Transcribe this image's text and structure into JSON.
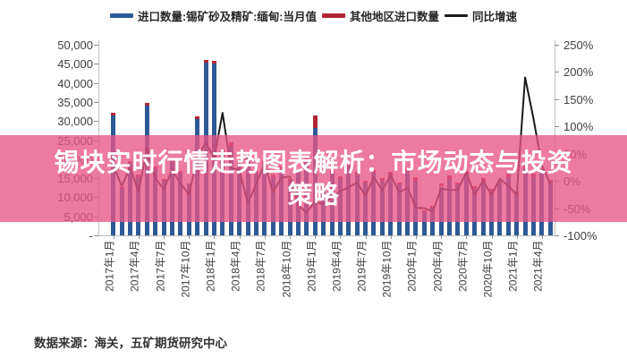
{
  "legend": {
    "items": [
      {
        "label": "进口数量:锡矿砂及精矿:缅甸:当月值",
        "color": "#2d5a96",
        "type": "bar"
      },
      {
        "label": "其他地区进口数量",
        "color": "#b22433",
        "type": "bar"
      },
      {
        "label": "同比增速",
        "color": "#1a1a1a",
        "type": "line"
      }
    ]
  },
  "banner": {
    "title_line1": "锡块实时行情走势图表解析：市场动态与投资",
    "title_line2": "策略",
    "background_color": "#e85485",
    "overlay_opacity": 0.78,
    "text_color": "#ffffff"
  },
  "footer": {
    "source_text": "数据来源：海关，五矿期货研究中心"
  },
  "chart_data": {
    "type": "bar",
    "title": "",
    "xlabel": "",
    "ylabel_left": "",
    "ylabel_right": "",
    "months_total": 53,
    "x_start": "2017年1月",
    "x_tick_every": 3,
    "x_tick_labels": [
      "2017年1月",
      "2017年4月",
      "2017年7月",
      "2017年10月",
      "2018年1月",
      "2018年4月",
      "2018年7月",
      "2018年10月",
      "2019年1月",
      "2019年4月",
      "2019年7月",
      "2019年10月",
      "2020年1月",
      "2020年4月",
      "2020年7月",
      "2020年10月",
      "2021年1月",
      "2021年4月"
    ],
    "left_axis": {
      "ticks": [
        "50,000",
        "45,000",
        "40,000",
        "35,000",
        "30,000",
        "25,000",
        "20,000",
        "15,000",
        "10,000",
        "5,000",
        "-"
      ],
      "min": 0,
      "max": 50000
    },
    "right_axis": {
      "ticks": [
        "250%",
        "200%",
        "150%",
        "100%",
        "50%",
        "0%",
        "-50%",
        "-100%"
      ],
      "min": -100,
      "max": 250
    },
    "grid": false,
    "legend_position": "top",
    "series": [
      {
        "name": "进口数量:锡矿砂及精矿:缅甸:当月值",
        "type": "bar",
        "stack": "imports",
        "axis": "left",
        "color": "#2d5a96",
        "values": [
          30800,
          12000,
          18500,
          15000,
          33300,
          17000,
          14000,
          19000,
          16000,
          13000,
          29800,
          44200,
          44000,
          21000,
          23000,
          18000,
          20000,
          16000,
          18500,
          15000,
          17000,
          14000,
          16500,
          19000,
          27500,
          12000,
          16000,
          14500,
          17500,
          15500,
          13500,
          16000,
          14000,
          15500,
          13000,
          16500,
          14000,
          6000,
          7000,
          12500,
          14500,
          13000,
          15500,
          12000,
          14000,
          11500,
          13500,
          15000,
          10500,
          17400,
          15000,
          16000,
          13500
        ]
      },
      {
        "name": "其他地区进口数量",
        "type": "bar",
        "stack": "imports",
        "axis": "left",
        "color": "#b22433",
        "values": [
          700,
          400,
          600,
          500,
          700,
          600,
          400,
          700,
          500,
          400,
          700,
          800,
          800,
          700,
          800,
          600,
          700,
          500,
          600,
          500,
          600,
          400,
          500,
          700,
          3200,
          600,
          800,
          700,
          900,
          800,
          600,
          700,
          600,
          800,
          500,
          900,
          800,
          400,
          500,
          700,
          800,
          600,
          900,
          600,
          700,
          500,
          600,
          800,
          700,
          1100,
          900,
          1000,
          800
        ]
      },
      {
        "name": "同比增速",
        "type": "line",
        "axis": "right",
        "color": "#1a1a1a",
        "values": [
          30,
          -10,
          25,
          -20,
          60,
          5,
          -15,
          20,
          -5,
          -25,
          45,
          70,
          42,
          125,
          24,
          20,
          -41,
          -6,
          32,
          -21,
          6,
          8,
          -45,
          -58,
          -38,
          -43,
          -30,
          -19,
          -12,
          -3,
          -27,
          7,
          -18,
          11,
          -21,
          -13,
          -49,
          -50,
          -56,
          -14,
          -17,
          -16,
          15,
          -25,
          0,
          -26,
          4,
          -9,
          -25,
          190,
          114,
          28,
          -5
        ]
      }
    ]
  }
}
